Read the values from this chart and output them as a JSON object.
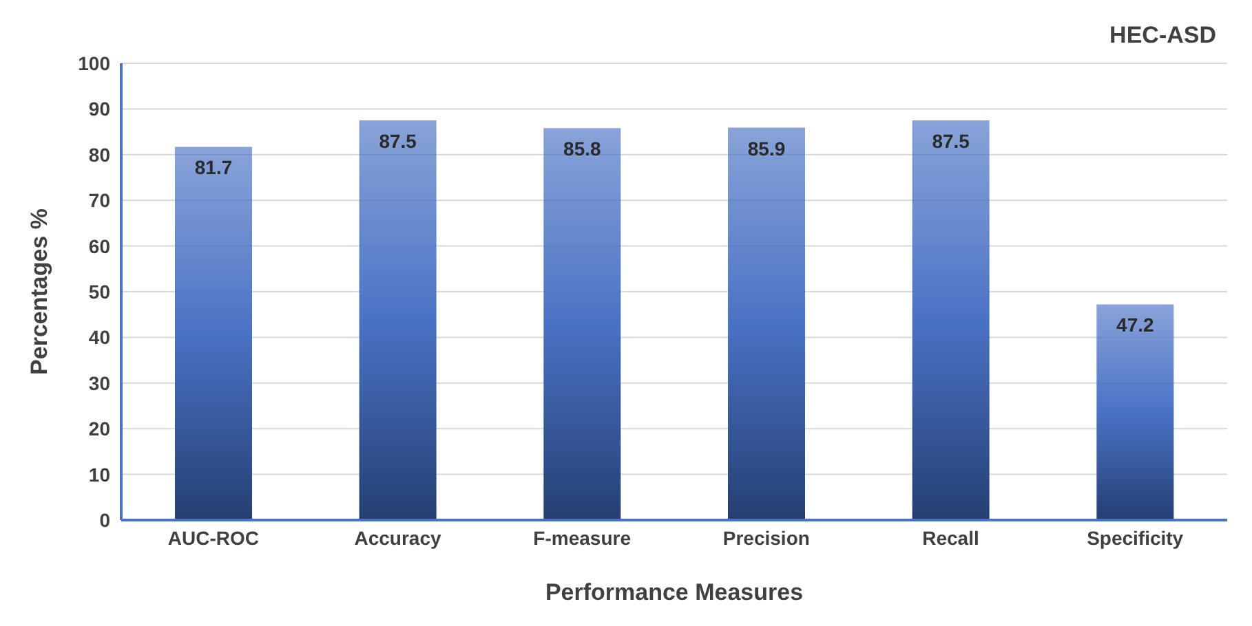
{
  "chart_data": {
    "type": "bar",
    "title": "HEC-ASD",
    "xlabel": "Performance Measures",
    "ylabel": "Percentages %",
    "categories": [
      "AUC-ROC",
      "Accuracy",
      "F-measure",
      "Precision",
      "Recall",
      "Specificity"
    ],
    "values": [
      81.7,
      87.5,
      85.8,
      85.9,
      87.5,
      47.2
    ],
    "color": "#4a72c4",
    "ylim": [
      0,
      100
    ],
    "yticks": [
      0,
      10,
      20,
      30,
      40,
      50,
      60,
      70,
      80,
      90,
      100
    ],
    "grid": "y",
    "data_labels": true
  }
}
